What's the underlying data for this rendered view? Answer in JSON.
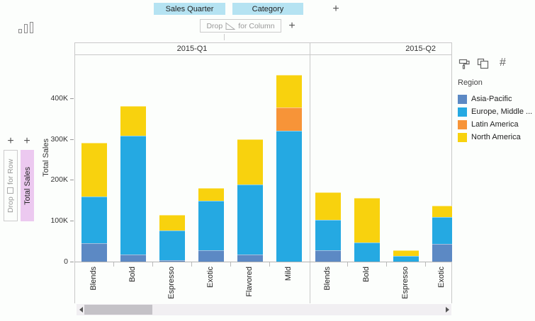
{
  "ui": {
    "plus_label": "+",
    "chip_colors": {
      "dimension": "#B5E3F2",
      "measure": "#ECC9F0"
    }
  },
  "column_shelf": {
    "fields": [
      "Sales Quarter",
      "Category"
    ],
    "drop_zone": {
      "prefix": "Drop",
      "suffix": "for Column"
    }
  },
  "row_shelf": {
    "fields": [
      "Total Sales"
    ],
    "drop_zone": {
      "prefix": "Drop",
      "suffix": "for Row"
    }
  },
  "toolbar": {
    "icons": [
      "paint-roller",
      "duplicate",
      "number-format"
    ]
  },
  "legend": {
    "title": "Region"
  },
  "chart_data": {
    "type": "bar",
    "stacked": true,
    "title": "",
    "xlabel": "",
    "ylabel": "Total Sales",
    "value_unit": "K",
    "ylim": [
      0,
      500
    ],
    "grid": false,
    "legend_position": "right",
    "y_ticks": [
      {
        "label": "400K",
        "value": 400
      },
      {
        "label": "300K",
        "value": 300
      },
      {
        "label": "200K",
        "value": 200
      },
      {
        "label": "100K",
        "value": 100
      },
      {
        "label": "0",
        "value": 0
      }
    ],
    "panels": [
      {
        "label": "2015-Q1",
        "categories": [
          "Blends",
          "Bold",
          "Espresso",
          "Exotic",
          "Flavored",
          "Mild"
        ]
      },
      {
        "label": "2015-Q2",
        "categories": [
          "Blends",
          "Bold",
          "Espresso",
          "Exotic"
        ]
      }
    ],
    "series": [
      {
        "name": "Asia-Pacific",
        "color": "#5C89C4",
        "values": [
          45,
          18,
          4,
          28,
          18,
          0,
          28,
          0,
          0,
          44
        ]
      },
      {
        "name": "Europe, Middle ...",
        "color": "#25A9E2",
        "values": [
          115,
          290,
          72,
          120,
          170,
          320,
          74,
          46,
          14,
          65
        ]
      },
      {
        "name": "Latin America",
        "color": "#F79438",
        "values": [
          0,
          0,
          0,
          0,
          0,
          58,
          0,
          0,
          0,
          0
        ]
      },
      {
        "name": "North America",
        "color": "#F8D20E",
        "values": [
          130,
          72,
          38,
          32,
          112,
          79,
          67,
          110,
          14,
          28
        ]
      }
    ]
  }
}
